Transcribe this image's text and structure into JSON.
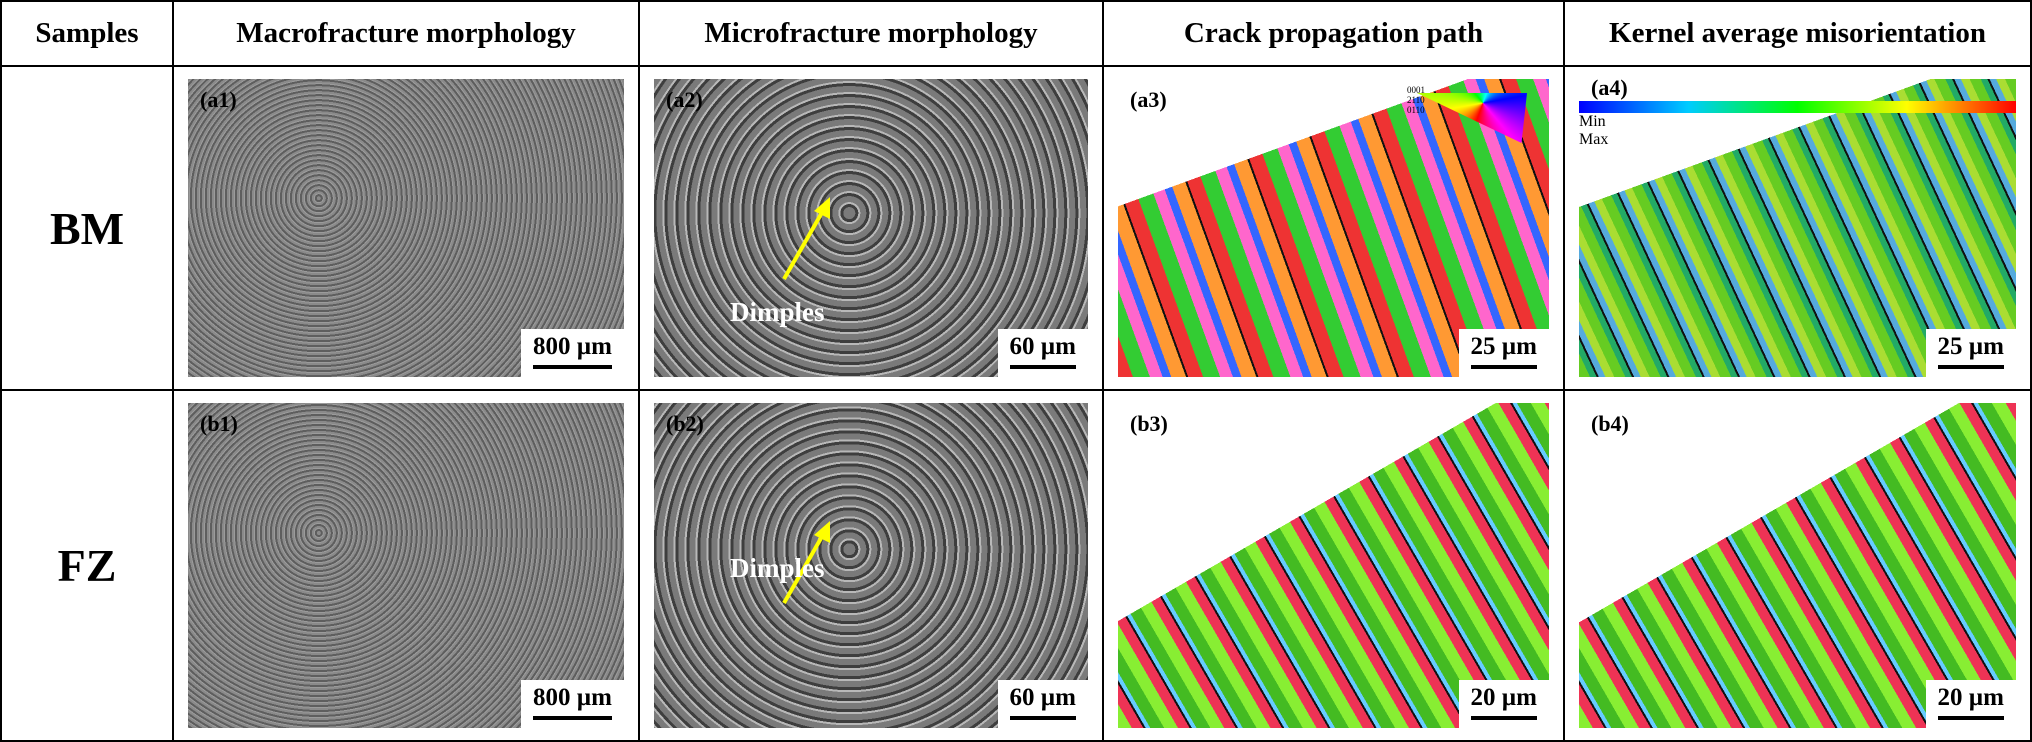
{
  "table": {
    "header": [
      "Samples",
      "Macrofracture morphology",
      "Microfracture morphology",
      "Crack propagation path",
      "Kernel average misorientation"
    ],
    "rows": [
      {
        "sample": "BM",
        "panels": [
          {
            "label": "(a1)",
            "scale_bar": "800 µm"
          },
          {
            "label": "(a2)",
            "scale_bar": "60 µm",
            "annotation": "Dimples"
          },
          {
            "label": "(a3)",
            "scale_bar": "25 µm",
            "ipf_key": [
              "0001",
              "2110",
              "0110"
            ]
          },
          {
            "label": "(a4)",
            "scale_bar": "25 µm",
            "legend": [
              "Min",
              "Max"
            ]
          }
        ]
      },
      {
        "sample": "FZ",
        "panels": [
          {
            "label": "(b1)",
            "scale_bar": "800 µm"
          },
          {
            "label": "(b2)",
            "scale_bar": "60 µm",
            "annotation": "Dimples"
          },
          {
            "label": "(b3)",
            "scale_bar": "20 µm"
          },
          {
            "label": "(b4)",
            "scale_bar": "20 µm"
          }
        ]
      }
    ]
  }
}
